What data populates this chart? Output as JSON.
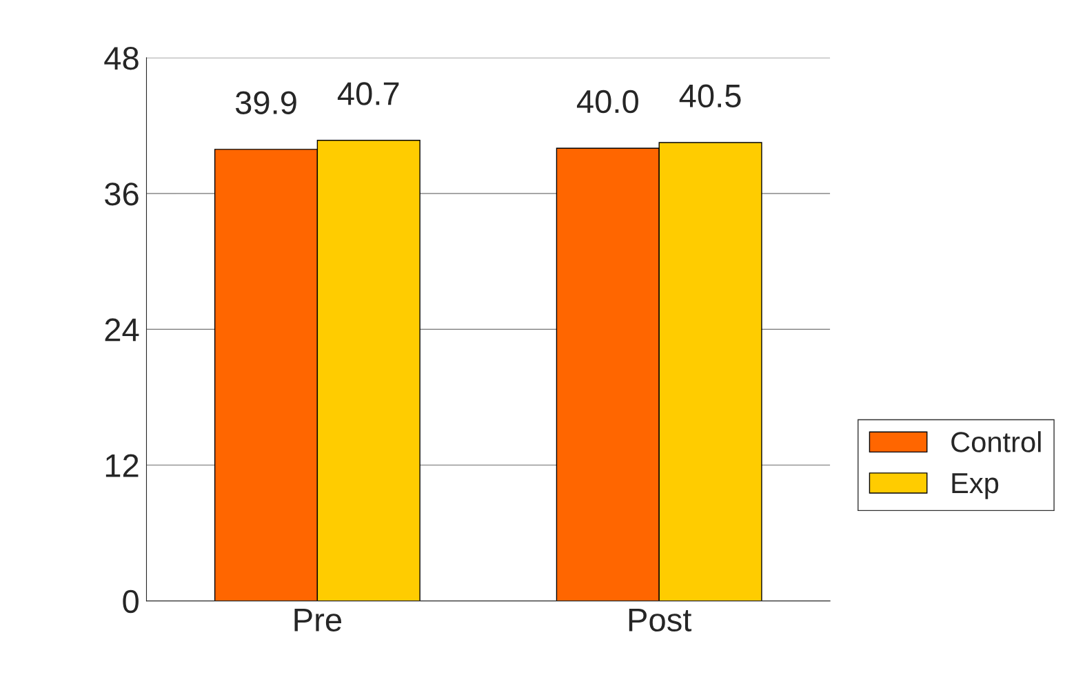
{
  "chart_data": {
    "type": "bar",
    "categories": [
      "Pre",
      "Post"
    ],
    "series": [
      {
        "name": "Control",
        "color": "#ff6600",
        "values": [
          39.9,
          40.0
        ],
        "value_labels": [
          "39.9",
          "40.0"
        ]
      },
      {
        "name": "Exp",
        "color": "#ffcc00",
        "values": [
          40.7,
          40.5
        ],
        "value_labels": [
          "40.7",
          "40.5"
        ]
      }
    ],
    "ylim": [
      0,
      48
    ],
    "yticks": [
      0,
      12,
      24,
      36,
      48
    ],
    "grid": "y",
    "legend": "right"
  }
}
